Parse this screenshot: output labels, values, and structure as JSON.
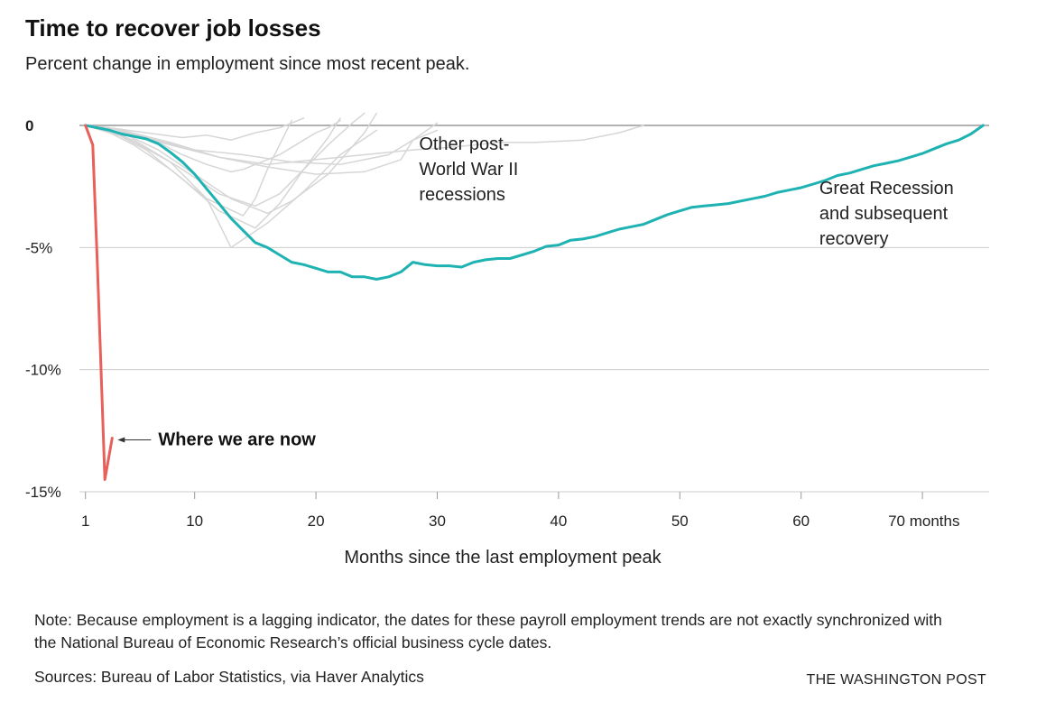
{
  "title": "Time to recover job losses",
  "subtitle": "Percent change in employment since most recent peak.",
  "note": "Note: Because employment is a lagging indicator, the dates for these payroll employment trends are not exactly synchronized with the National Bureau of Economic Research’s official business cycle dates.",
  "sources": "Sources: Bureau of Labor Statistics, via Haver Analytics",
  "brand": "THE WASHINGTON POST",
  "colors": {
    "great_recession": "#1fb2b2",
    "current": "#e8605a",
    "other": "#d6d6d6",
    "grid": "#cccccc"
  },
  "chart_data": {
    "type": "line",
    "xlabel": "Months since the last employment peak",
    "ylabel": "",
    "xlim": [
      0.5,
      75.5
    ],
    "ylim": [
      -15,
      0
    ],
    "x_ticks": [
      1,
      10,
      20,
      30,
      40,
      50,
      60,
      70
    ],
    "x_tick_labels": [
      "1",
      "10",
      "20",
      "30",
      "40",
      "50",
      "60",
      "70 months"
    ],
    "y_ticks": [
      0,
      -5,
      -10,
      -15
    ],
    "y_tick_labels": [
      "0",
      "-5%",
      "-10%",
      "-15%"
    ],
    "grid": true,
    "annotations": [
      {
        "lines": [
          "Other post-",
          "World War II",
          "recessions"
        ],
        "x": 28.5,
        "y": -1.0,
        "bold": false
      },
      {
        "lines": [
          "Great Recession",
          "and subsequent",
          "recovery"
        ],
        "x": 61.5,
        "y": -2.8,
        "bold": false
      },
      {
        "lines": [
          "Where we are now"
        ],
        "x": 7,
        "y": -12.8,
        "bold": true,
        "arrow": true
      }
    ],
    "series": [
      {
        "role": "great_recession",
        "x": [
          1,
          2,
          3,
          4,
          5,
          6,
          7,
          8,
          9,
          10,
          11,
          12,
          13,
          14,
          15,
          16,
          17,
          18,
          19,
          20,
          21,
          22,
          23,
          24,
          25,
          26,
          27,
          28,
          29,
          30,
          31,
          32,
          33,
          34,
          35,
          36,
          37,
          38,
          39,
          40,
          41,
          42,
          43,
          44,
          45,
          46,
          47,
          48,
          49,
          50,
          51,
          52,
          53,
          54,
          55,
          56,
          57,
          58,
          59,
          60,
          61,
          62,
          63,
          64,
          65,
          66,
          67,
          68,
          69,
          70,
          71,
          72,
          73,
          74,
          75
        ],
        "values": [
          0,
          -0.1,
          -0.2,
          -0.35,
          -0.45,
          -0.55,
          -0.75,
          -1.1,
          -1.5,
          -2.0,
          -2.6,
          -3.2,
          -3.8,
          -4.3,
          -4.8,
          -5.0,
          -5.3,
          -5.6,
          -5.7,
          -5.85,
          -6.0,
          -6.0,
          -6.2,
          -6.2,
          -6.3,
          -6.2,
          -6.0,
          -5.6,
          -5.7,
          -5.75,
          -5.75,
          -5.8,
          -5.6,
          -5.5,
          -5.45,
          -5.45,
          -5.3,
          -5.15,
          -4.95,
          -4.9,
          -4.7,
          -4.65,
          -4.55,
          -4.4,
          -4.25,
          -4.15,
          -4.05,
          -3.85,
          -3.65,
          -3.5,
          -3.35,
          -3.3,
          -3.25,
          -3.2,
          -3.1,
          -3.0,
          -2.9,
          -2.75,
          -2.65,
          -2.55,
          -2.4,
          -2.25,
          -2.05,
          -1.95,
          -1.8,
          -1.65,
          -1.55,
          -1.45,
          -1.3,
          -1.15,
          -0.95,
          -0.75,
          -0.6,
          -0.35,
          0.0
        ]
      },
      {
        "role": "current",
        "x": [
          1,
          1.6,
          2,
          2.6,
          3.2
        ],
        "values": [
          0,
          -0.8,
          -6.0,
          -14.5,
          -12.8
        ]
      },
      {
        "role": "other",
        "x": [
          1,
          3,
          5,
          8,
          11,
          14,
          15,
          16,
          18
        ],
        "values": [
          0,
          -0.3,
          -0.8,
          -1.8,
          -3.0,
          -3.7,
          -3.0,
          -1.8,
          0.2
        ]
      },
      {
        "role": "other",
        "x": [
          1,
          3,
          6,
          9,
          12,
          15,
          17,
          19,
          21,
          22
        ],
        "values": [
          0,
          -0.2,
          -1.0,
          -2.2,
          -3.5,
          -4.2,
          -3.2,
          -1.8,
          -0.5,
          0.3
        ]
      },
      {
        "role": "other",
        "x": [
          1,
          4,
          7,
          10,
          13,
          16,
          18,
          21,
          24,
          25
        ],
        "values": [
          0,
          -0.3,
          -1.0,
          -2.0,
          -3.0,
          -3.6,
          -3.1,
          -2.0,
          -0.3,
          0.5
        ]
      },
      {
        "role": "other",
        "x": [
          1,
          4,
          8,
          11,
          13,
          16,
          19,
          22,
          25
        ],
        "values": [
          0,
          -0.4,
          -1.5,
          -3.0,
          -5.0,
          -4.0,
          -2.7,
          -1.2,
          -0.2
        ]
      },
      {
        "role": "other",
        "x": [
          1,
          5,
          9,
          12,
          15,
          17,
          19,
          21,
          23,
          24
        ],
        "values": [
          0,
          -0.6,
          -1.8,
          -2.8,
          -3.3,
          -2.8,
          -1.8,
          -0.8,
          0.1,
          0.5
        ]
      },
      {
        "role": "other",
        "x": [
          1,
          3,
          6,
          10,
          14,
          18,
          22,
          26,
          28,
          30
        ],
        "values": [
          0,
          -0.1,
          -0.5,
          -1.0,
          -1.2,
          -1.5,
          -1.6,
          -1.2,
          -0.6,
          0.1
        ]
      },
      {
        "role": "other",
        "x": [
          1,
          4,
          8,
          12,
          16,
          20,
          24,
          27,
          28,
          30
        ],
        "values": [
          0,
          -0.2,
          -0.7,
          -1.3,
          -1.7,
          -2.0,
          -1.9,
          -1.4,
          -0.6,
          -0.2
        ]
      },
      {
        "role": "other",
        "x": [
          1,
          4,
          8,
          12,
          16,
          20,
          24,
          28,
          31,
          33,
          35,
          38,
          42,
          45,
          47
        ],
        "values": [
          0,
          -0.3,
          -0.8,
          -1.3,
          -1.6,
          -1.4,
          -1.2,
          -1.0,
          -0.9,
          -0.8,
          -0.7,
          -0.7,
          -0.6,
          -0.3,
          0.0
        ]
      },
      {
        "role": "other",
        "x": [
          1,
          3,
          5,
          7,
          9,
          11,
          13,
          14,
          15,
          17,
          19,
          20,
          21,
          22
        ],
        "values": [
          0,
          -0.1,
          -0.4,
          -0.7,
          -1.2,
          -1.6,
          -1.9,
          -1.8,
          -1.6,
          -1.2,
          -0.6,
          -0.3,
          -0.1,
          0.2
        ]
      },
      {
        "role": "other",
        "x": [
          1,
          3,
          6,
          9,
          11,
          13,
          15,
          17,
          18,
          19
        ],
        "values": [
          0,
          -0.1,
          -0.3,
          -0.5,
          -0.4,
          -0.6,
          -0.3,
          -0.1,
          0.1,
          0.3
        ]
      }
    ]
  }
}
